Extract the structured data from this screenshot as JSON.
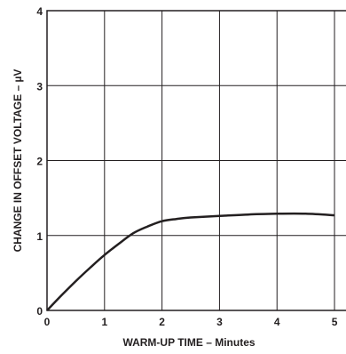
{
  "chart_data": {
    "type": "line",
    "xlabel": "WARM-UP TIME – Minutes",
    "ylabel": "CHANGE IN OFFSET VOLTAGE – µV",
    "xlim": [
      0,
      5
    ],
    "ylim": [
      0,
      4
    ],
    "x_ticks": [
      "0",
      "1",
      "2",
      "3",
      "4",
      "5"
    ],
    "y_ticks": [
      "0",
      "1",
      "2",
      "3",
      "4"
    ],
    "grid": true,
    "line_color": "#231f20",
    "series": [
      {
        "x": [
          0,
          0.25,
          0.5,
          0.75,
          1.0,
          1.25,
          1.5,
          1.75,
          2.0,
          2.25,
          2.5,
          3.0,
          3.5,
          4.0,
          4.5,
          5.0
        ],
        "values": [
          0,
          0.2,
          0.39,
          0.57,
          0.74,
          0.89,
          1.03,
          1.12,
          1.19,
          1.22,
          1.24,
          1.26,
          1.28,
          1.29,
          1.29,
          1.27
        ]
      }
    ]
  }
}
